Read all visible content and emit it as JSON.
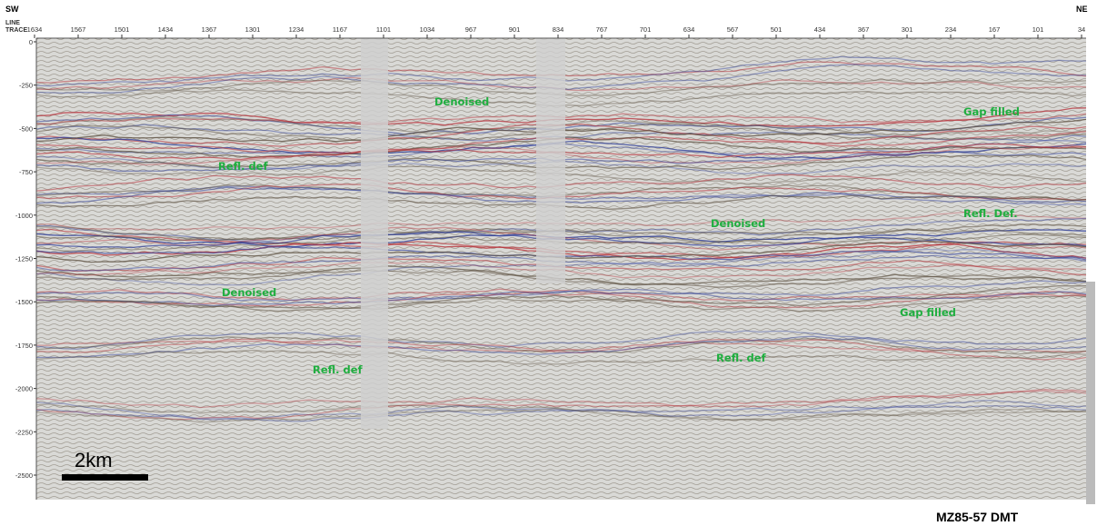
{
  "header": {
    "left": "SW",
    "right": "NE",
    "line_label": "LINE",
    "trace_label": "TRACE",
    "traces": [
      "1634",
      "1567",
      "1501",
      "1434",
      "1367",
      "1301",
      "1234",
      "1167",
      "1101",
      "1034",
      "967",
      "901",
      "834",
      "767",
      "701",
      "634",
      "567",
      "501",
      "434",
      "367",
      "301",
      "234",
      "167",
      "101",
      "34"
    ]
  },
  "depth_axis": [
    "0",
    "-250",
    "-500",
    "-750",
    "-1000",
    "-1250",
    "-1500",
    "-1750",
    "-2000",
    "-2250",
    "-2500"
  ],
  "annotations": [
    {
      "text": "Denoised"
    },
    {
      "text": "Gap filled"
    },
    {
      "text": "Refl. def"
    },
    {
      "text": "Denoised"
    },
    {
      "text": "Refl. Def."
    },
    {
      "text": "Denoised"
    },
    {
      "text": "Gap filled"
    },
    {
      "text": "Refl. def"
    },
    {
      "text": "Refl. def"
    }
  ],
  "scale_bar": "2km",
  "caption": "MZ85-57 DMT"
}
